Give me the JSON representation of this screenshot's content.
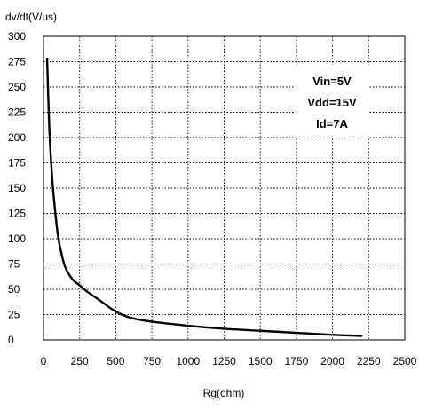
{
  "chart_data": {
    "type": "line",
    "title": "",
    "xlabel": "Rg(ohm)",
    "ylabel": "dv/dt(V/us)",
    "xlim": [
      0,
      2500
    ],
    "ylim": [
      0,
      300
    ],
    "xticks": [
      0,
      250,
      500,
      750,
      1000,
      1250,
      1500,
      1750,
      2000,
      2250,
      2500
    ],
    "yticks": [
      0,
      25,
      50,
      75,
      100,
      125,
      150,
      175,
      200,
      225,
      250,
      275,
      300
    ],
    "xtick_labels": [
      "0",
      "250",
      "500",
      "750",
      "1000",
      "1250",
      "1500",
      "1750",
      "2000",
      "2250",
      "2500"
    ],
    "ytick_labels": [
      "0",
      "25",
      "50",
      "75",
      "100",
      "125",
      "150",
      "175",
      "200",
      "225",
      "250",
      "275",
      "300"
    ],
    "grid": true,
    "legend": "none",
    "annotation": [
      "Vin=5V",
      "Vdd=15V",
      "Id=7A"
    ],
    "series": [
      {
        "x": [
          25,
          40,
          60,
          80,
          100,
          120,
          150,
          200,
          250,
          300,
          400,
          500,
          600,
          750,
          1000,
          1250,
          1500,
          1750,
          2000,
          2200
        ],
        "y": [
          278,
          210,
          160,
          128,
          103,
          88,
          72,
          60,
          54,
          48,
          38,
          28,
          22,
          18,
          14,
          11,
          9,
          7,
          5,
          4
        ]
      }
    ],
    "colors": {
      "line": "#000000",
      "grid": "#000000",
      "frame": "#000000"
    }
  }
}
